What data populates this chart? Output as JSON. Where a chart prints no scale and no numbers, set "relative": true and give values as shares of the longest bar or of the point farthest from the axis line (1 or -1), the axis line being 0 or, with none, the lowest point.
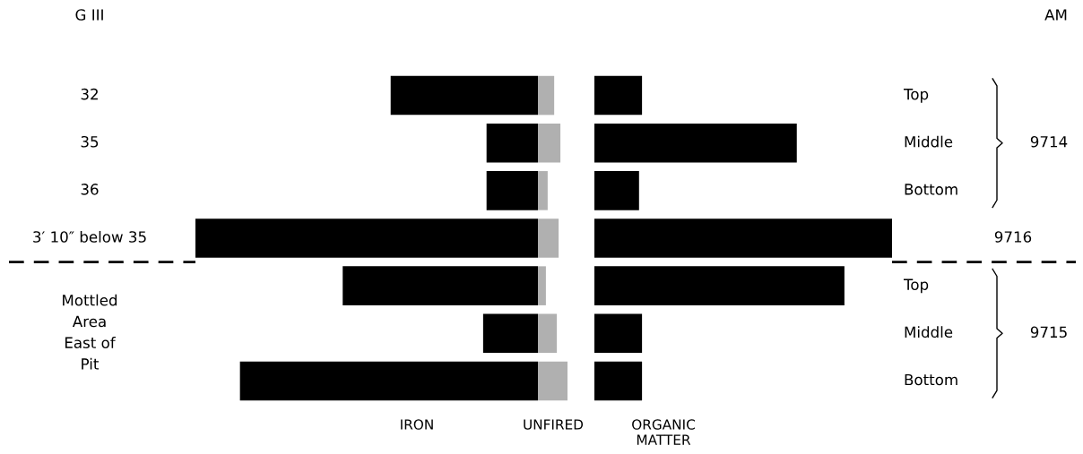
{
  "chart_data": [
    {
      "type": "bar",
      "orientation": "horizontal",
      "relative": true,
      "ylabel": "G III",
      "xlabel": "IRON",
      "categories": [
        "32",
        "35",
        "36",
        "3′ 10″ below 35",
        null,
        null,
        null
      ],
      "values": [
        0.43,
        0.15,
        0.15,
        1,
        0.57,
        0.16,
        0.87
      ],
      "color": "#000000",
      "annotations": [
        "Mottled\nArea\nEast of\nPit"
      ]
    },
    {
      "type": "bar",
      "orientation": "horizontal",
      "relative": true,
      "xlabel": "UNFIRED",
      "categories": [
        null,
        null,
        null,
        null,
        null,
        null,
        null
      ],
      "values": [
        0.55,
        0.76,
        0.33,
        0.7,
        0.27,
        0.64,
        1
      ],
      "color": "#b0b0b0"
    },
    {
      "type": "bar",
      "orientation": "horizontal",
      "relative": true,
      "y2label": "AM",
      "xlabel": "ORGANIC\nMATTER",
      "categories": [
        "Top",
        "Middle",
        "Bottom",
        null,
        "Top",
        "Middle",
        "Bottom"
      ],
      "values": [
        0.16,
        0.68,
        0.15,
        1,
        0.84,
        0.16,
        0.16
      ],
      "color": "#000000",
      "annotations": [
        "9714",
        "9716",
        "9715"
      ]
    }
  ]
}
